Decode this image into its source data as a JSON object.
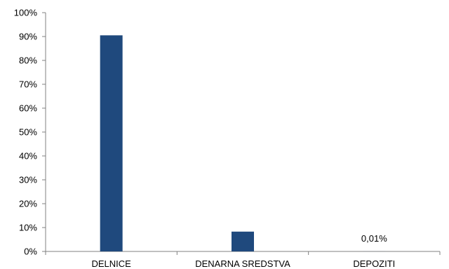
{
  "chart_data": {
    "type": "bar",
    "title": "",
    "xlabel": "",
    "ylabel": "",
    "categories": [
      "DELNICE",
      "DENARNA SREDSTVA",
      "DEPOZITI"
    ],
    "values": [
      90.5,
      8.3,
      0.01
    ],
    "data_labels": [
      "",
      "",
      "0,01%"
    ],
    "ylim": [
      0,
      100
    ],
    "yticks": [
      0,
      10,
      20,
      30,
      40,
      50,
      60,
      70,
      80,
      90,
      100
    ],
    "ytick_labels": [
      "0%",
      "10%",
      "20%",
      "30%",
      "40%",
      "50%",
      "60%",
      "70%",
      "80%",
      "90%",
      "100%"
    ],
    "grid": false,
    "legend": "none",
    "bar_color": "#1F497D"
  }
}
